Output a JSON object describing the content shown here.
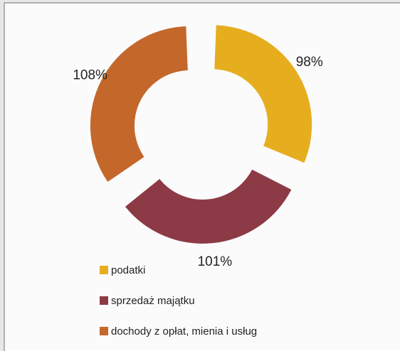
{
  "chart_data": {
    "type": "donut",
    "categories": [
      "podatki",
      "sprzedaż majątku",
      "dochody z opłat, mienia i usług"
    ],
    "values": [
      98,
      101,
      108
    ],
    "value_labels": [
      "98%",
      "101%",
      "108%"
    ],
    "colors": [
      "#e6ae1f",
      "#8c3a45",
      "#c4672b"
    ],
    "legend": "bottom-left"
  }
}
